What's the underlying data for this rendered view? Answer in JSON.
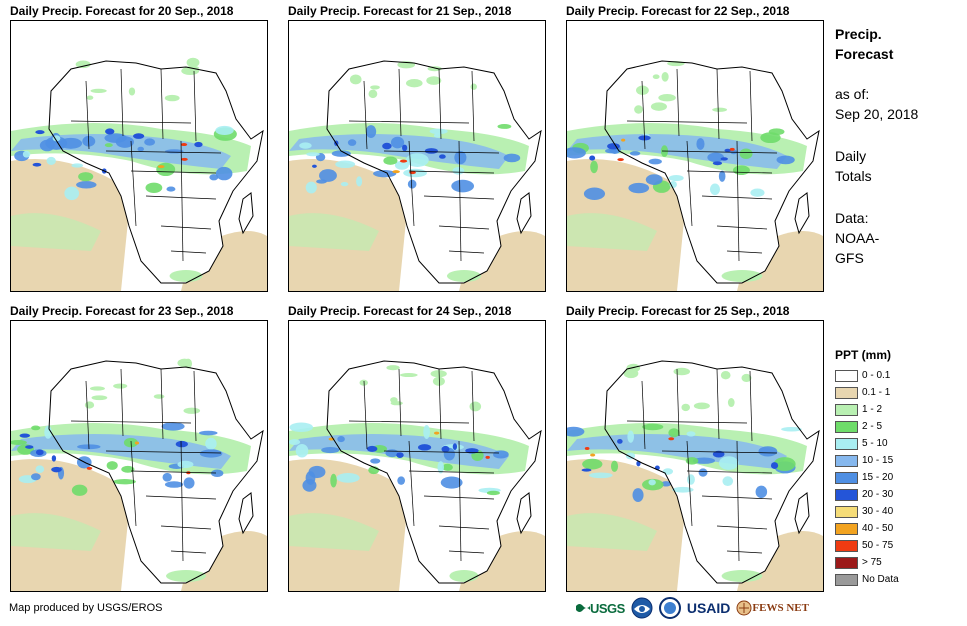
{
  "panels": [
    {
      "title": "Daily Precip. Forecast for 20 Sep., 2018"
    },
    {
      "title": "Daily Precip. Forecast for 21 Sep., 2018"
    },
    {
      "title": "Daily Precip. Forecast for 22 Sep., 2018"
    },
    {
      "title": "Daily Precip. Forecast for 23 Sep., 2018"
    },
    {
      "title": "Daily Precip. Forecast for 24 Sep., 2018"
    },
    {
      "title": "Daily Precip. Forecast for 25 Sep., 2018"
    }
  ],
  "side": {
    "heading_line1": "Precip.",
    "heading_line2": "Forecast",
    "asof_line1": "as of:",
    "asof_line2": "Sep 20, 2018",
    "totals_line1": "Daily",
    "totals_line2": "Totals",
    "data_line1": "Data:",
    "data_line2": "NOAA-",
    "data_line3": "GFS"
  },
  "legend": {
    "title": "PPT (mm)",
    "items": [
      {
        "label": "0 - 0.1",
        "color": "#ffffff"
      },
      {
        "label": "0.1 - 1",
        "color": "#e8d6b0"
      },
      {
        "label": "1 - 2",
        "color": "#b9f0b2"
      },
      {
        "label": "2 - 5",
        "color": "#6fdc6a"
      },
      {
        "label": "5 - 10",
        "color": "#a9eef2"
      },
      {
        "label": "10 - 15",
        "color": "#86b8ee"
      },
      {
        "label": "15 - 20",
        "color": "#4f8fe3"
      },
      {
        "label": "20 - 30",
        "color": "#2455d8"
      },
      {
        "label": "30 - 40",
        "color": "#f5dc78"
      },
      {
        "label": "40 - 50",
        "color": "#f2a320"
      },
      {
        "label": "50 - 75",
        "color": "#ef3b12"
      },
      {
        "label": "> 75",
        "color": "#9c1a1a"
      },
      {
        "label": "No Data",
        "color": "#9a9a9a"
      }
    ]
  },
  "credit": "Map produced by USGS/EROS",
  "logos": {
    "usgs": "USGS",
    "usaid": "USAID",
    "fews": "FEWS NET"
  }
}
